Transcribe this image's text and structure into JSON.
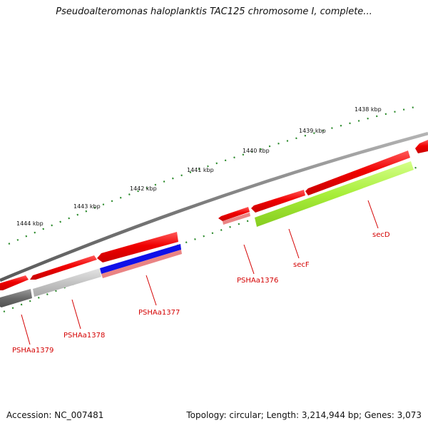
{
  "title": "Pseudoalteromonas haloplanktis TAC125 chromosome I, complete...",
  "footer": {
    "accession": "Accession: NC_007481",
    "topology": "Topology: circular; Length: 3,214,944 bp; Genes: 3,073"
  },
  "scale_labels": [
    "1444 kbp",
    "1443 kbp",
    "1442 kbp",
    "1441 kbp",
    "1440 kbp",
    "1439 kbp",
    "1438 kbp"
  ],
  "gene_labels": [
    "PSHAa1379",
    "PSHAa1378",
    "PSHAa1377",
    "PSHAa1376",
    "secF",
    "secD"
  ],
  "colors": {
    "backbone": "#7a7a7a",
    "gene_red": "#f00000",
    "secF": "#a8ee3a",
    "PSHAa1378": "#c8c8c8",
    "PSHAa1379": "#6e6e6e",
    "PSHAa1377_strip": "#1010e8",
    "tick": "#2a8a2a",
    "label": "#d40000"
  }
}
